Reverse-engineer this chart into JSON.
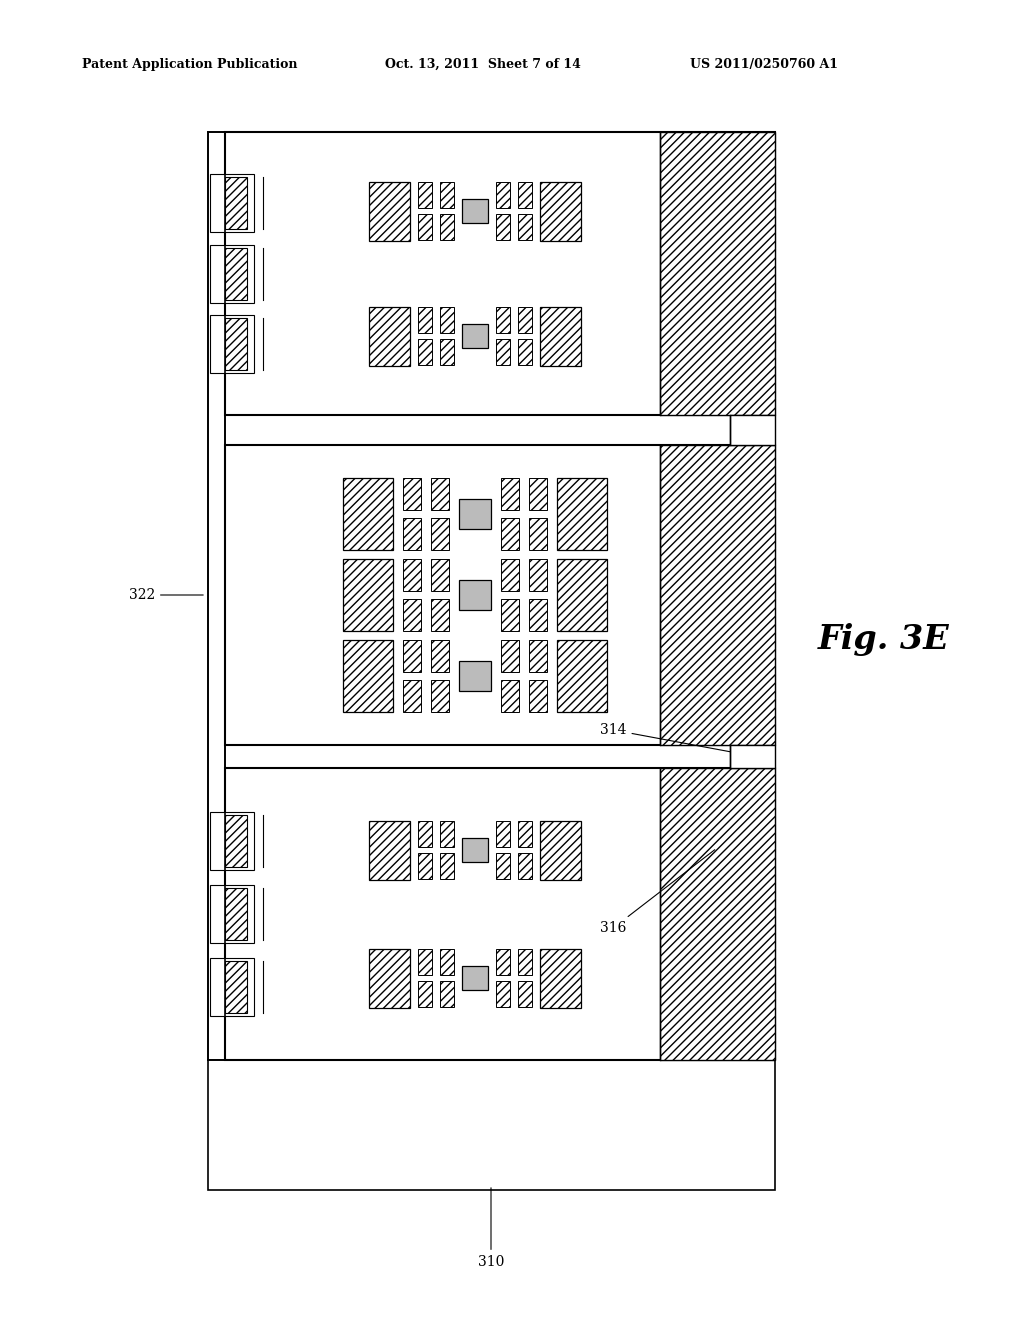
{
  "title_left": "Patent Application Publication",
  "title_mid": "Oct. 13, 2011  Sheet 7 of 14",
  "title_right": "US 2011/0250760 A1",
  "fig_label": "Fig. 3E",
  "label_310": "310",
  "label_314": "314",
  "label_316": "316",
  "label_322": "322",
  "bg_color": "#ffffff",
  "line_color": "#000000"
}
